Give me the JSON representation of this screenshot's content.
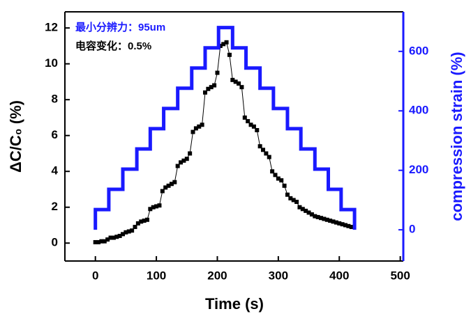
{
  "chart_data": {
    "type": "line",
    "xlabel": "Time (s)",
    "ylabel": "ΔC/C₀ (%)",
    "y2label": "compression strain (%)",
    "annotations": [
      {
        "text": "最小分辨力：95um",
        "color": "#1a1aff"
      },
      {
        "text": "电容变化：0.5%",
        "color": "#000000"
      }
    ],
    "xlim": [
      -50,
      505
    ],
    "xticks": [
      0,
      100,
      200,
      300,
      400,
      500
    ],
    "ylim": [
      -1,
      12.9
    ],
    "yticks": [
      0,
      2,
      4,
      6,
      8,
      10,
      12
    ],
    "y2lim": [
      -105,
      733
    ],
    "y2ticks": [
      0,
      200,
      400,
      600
    ],
    "series": [
      {
        "name": "ΔC/C0",
        "color": "#000000",
        "axis": "y",
        "x": [
          0,
          5,
          10,
          15,
          20,
          25,
          30,
          35,
          40,
          45,
          50,
          55,
          60,
          65,
          70,
          75,
          80,
          85,
          90,
          95,
          100,
          105,
          110,
          115,
          120,
          125,
          130,
          135,
          140,
          145,
          150,
          155,
          160,
          165,
          170,
          175,
          180,
          185,
          190,
          195,
          200,
          205,
          210,
          215,
          220,
          225,
          230,
          235,
          240,
          245,
          250,
          255,
          260,
          265,
          270,
          275,
          280,
          285,
          290,
          295,
          300,
          305,
          310,
          315,
          320,
          325,
          330,
          335,
          340,
          345,
          350,
          355,
          360,
          365,
          370,
          375,
          380,
          385,
          390,
          395,
          400,
          405,
          410,
          415,
          420
        ],
        "values": [
          0.05,
          0.05,
          0.1,
          0.1,
          0.2,
          0.3,
          0.3,
          0.35,
          0.4,
          0.5,
          0.6,
          0.65,
          0.7,
          0.9,
          1.1,
          1.2,
          1.25,
          1.3,
          1.9,
          2.0,
          2.05,
          2.1,
          2.9,
          3.1,
          3.2,
          3.3,
          3.4,
          4.3,
          4.5,
          4.6,
          4.7,
          5.0,
          6.2,
          6.4,
          6.5,
          6.6,
          8.4,
          8.6,
          8.7,
          8.8,
          9.5,
          11.0,
          11.1,
          11.2,
          10.5,
          9.1,
          9.0,
          8.9,
          8.7,
          7.0,
          6.8,
          6.6,
          6.5,
          6.3,
          5.4,
          5.2,
          5.0,
          4.8,
          4.0,
          3.8,
          3.6,
          3.5,
          3.2,
          2.7,
          2.5,
          2.4,
          2.3,
          2.0,
          1.9,
          1.8,
          1.7,
          1.6,
          1.5,
          1.45,
          1.4,
          1.35,
          1.3,
          1.25,
          1.2,
          1.15,
          1.1,
          1.05,
          1.0,
          0.95,
          0.9
        ]
      },
      {
        "name": "compression strain",
        "color": "#1a1aff",
        "axis": "y2",
        "x": [
          0,
          0,
          22,
          22,
          45,
          45,
          68,
          68,
          90,
          90,
          112,
          112,
          135,
          135,
          158,
          158,
          180,
          180,
          202,
          202,
          225,
          225,
          247,
          247,
          270,
          270,
          292,
          292,
          315,
          315,
          337,
          337,
          360,
          360,
          382,
          382,
          403,
          403,
          425,
          425
        ],
        "values": [
          0,
          68,
          68,
          136,
          136,
          204,
          204,
          272,
          272,
          340,
          340,
          408,
          408,
          476,
          476,
          544,
          544,
          612,
          612,
          680,
          680,
          612,
          612,
          544,
          544,
          476,
          476,
          408,
          408,
          340,
          340,
          272,
          272,
          204,
          204,
          136,
          136,
          68,
          68,
          0
        ]
      }
    ]
  }
}
